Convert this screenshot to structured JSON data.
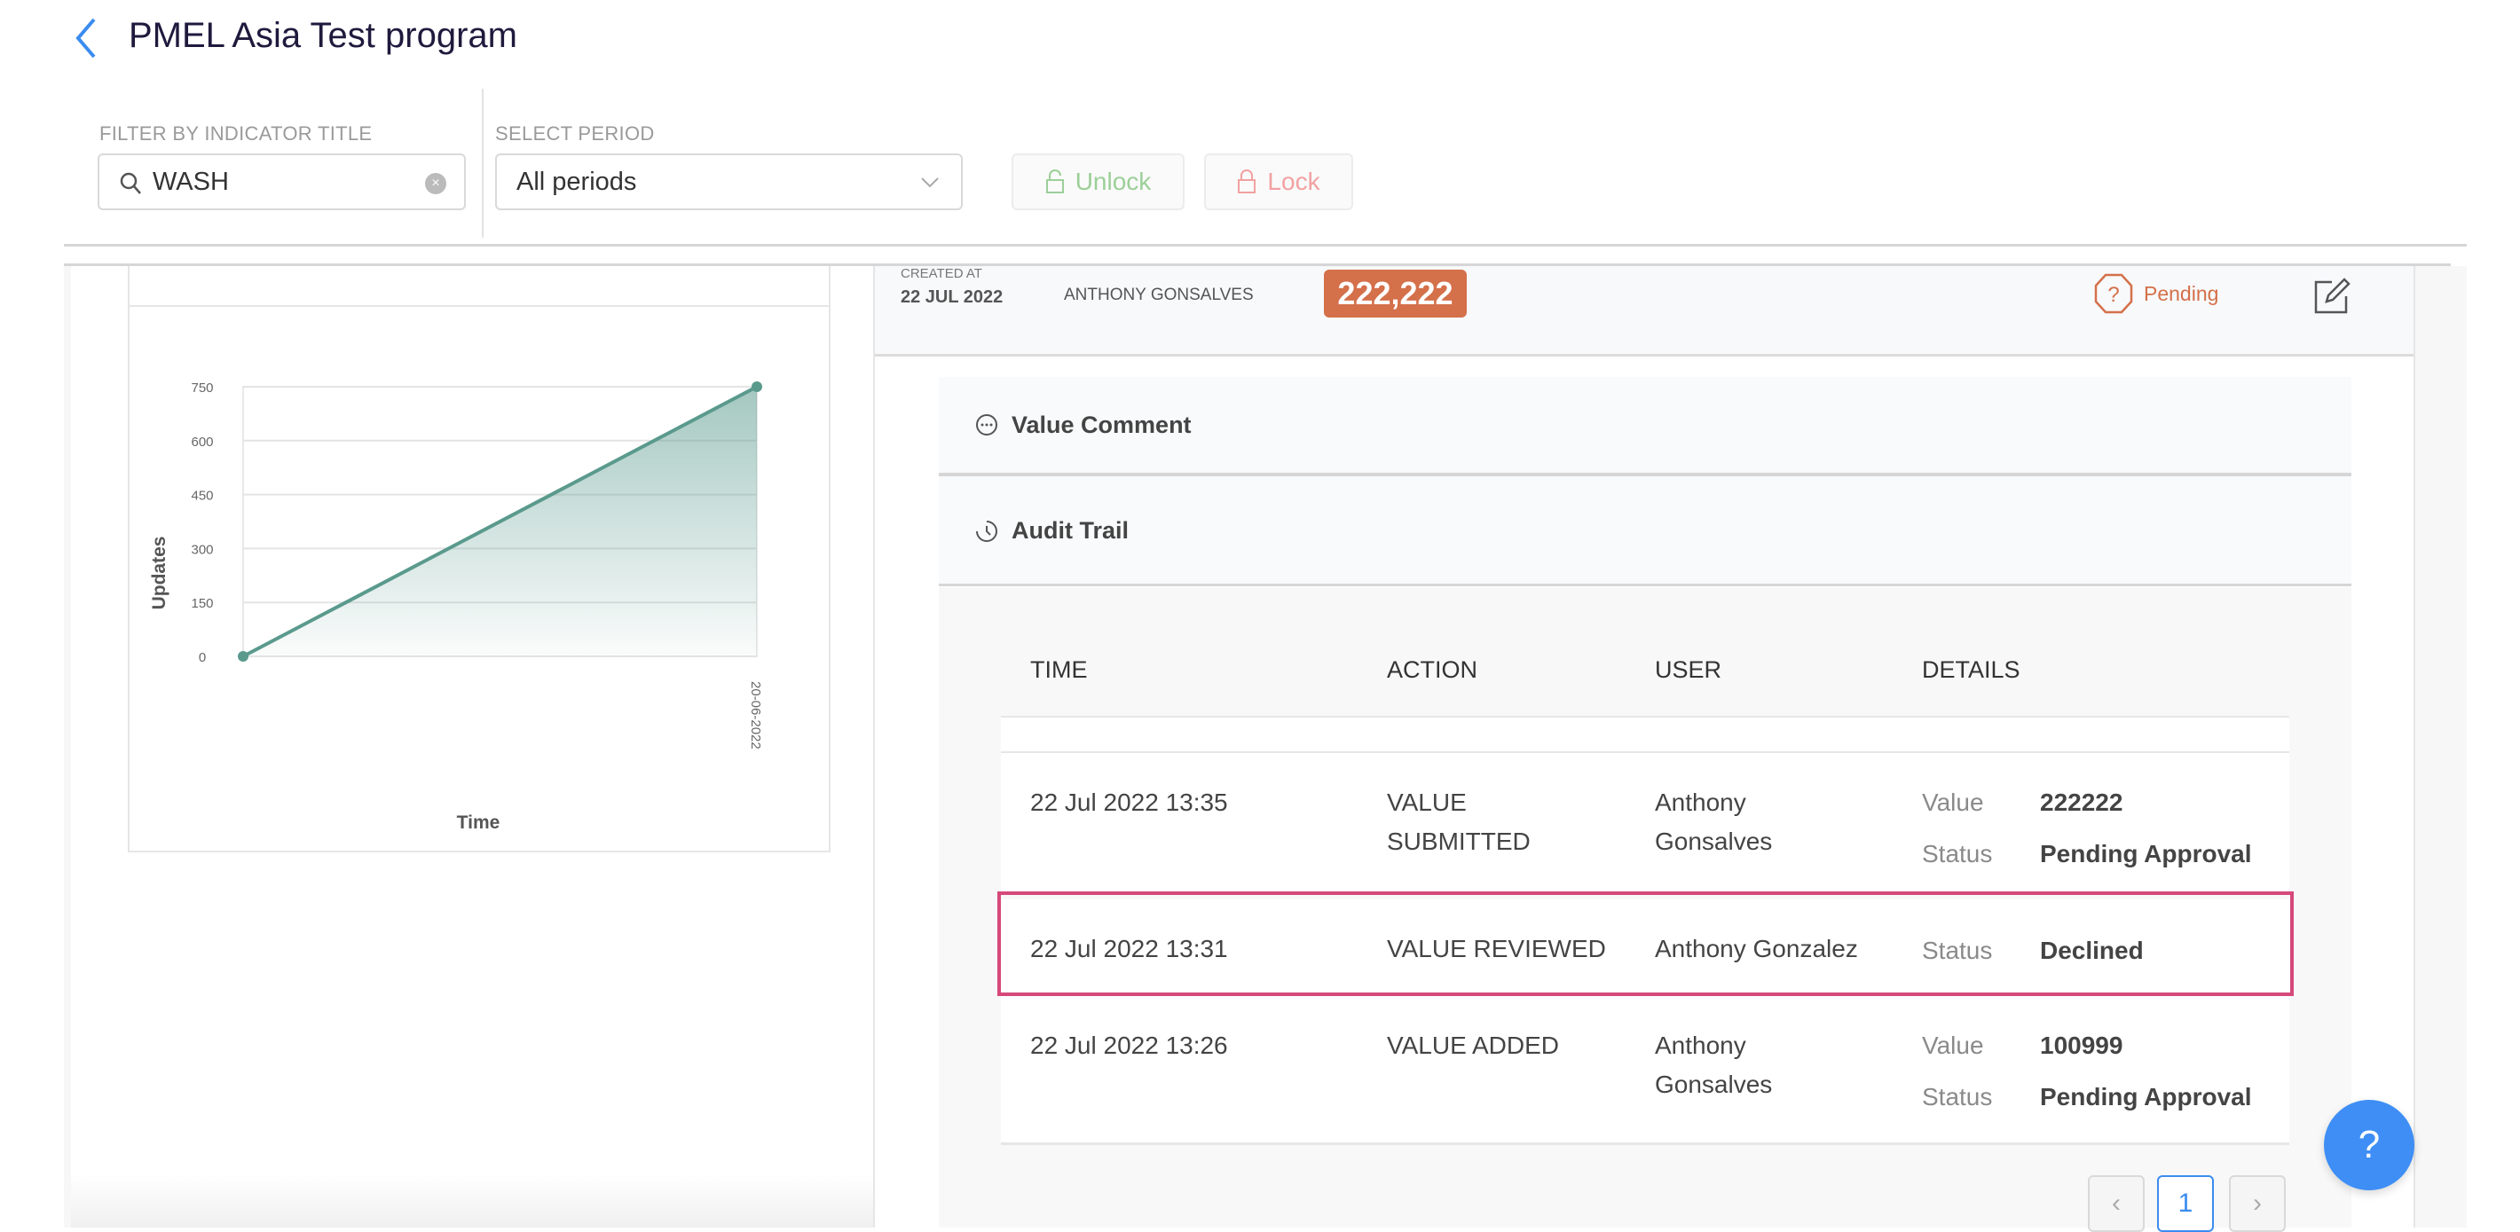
{
  "header": {
    "title": "PMEL Asia Test program"
  },
  "filters": {
    "indicator_label": "FILTER BY INDICATOR TITLE",
    "indicator_value": "WASH",
    "period_label": "SELECT PERIOD",
    "period_value": "All periods",
    "unlock_label": "Unlock",
    "lock_label": "Lock"
  },
  "update": {
    "created_at_label": "CREATED AT",
    "created_at": "22 JUL 2022",
    "user": "ANTHONY GONSALVES",
    "value": "222,222",
    "status": "Pending",
    "status_color": "#d4704a"
  },
  "sections": {
    "comment": "Value Comment",
    "audit": "Audit Trail"
  },
  "audit": {
    "columns": [
      "TIME",
      "ACTION",
      "USER",
      "DETAILS"
    ],
    "rows": [
      {
        "time": "22 Jul 2022 13:35",
        "action": [
          "VALUE",
          "SUBMITTED"
        ],
        "user": [
          "Anthony",
          "Gonsalves"
        ],
        "details": [
          {
            "label": "Value",
            "value": "222222"
          },
          {
            "label": "Status",
            "value": "Pending Approval"
          }
        ]
      },
      {
        "time": "22 Jul 2022 13:31",
        "action": [
          "VALUE REVIEWED"
        ],
        "user": [
          "Anthony Gonzalez"
        ],
        "details": [
          {
            "label": "Status",
            "value": "Declined"
          }
        ],
        "highlighted": true
      },
      {
        "time": "22 Jul 2022 13:26",
        "action": [
          "VALUE ADDED"
        ],
        "user": [
          "Anthony",
          "Gonsalves"
        ],
        "details": [
          {
            "label": "Value",
            "value": "100999"
          },
          {
            "label": "Status",
            "value": "Pending Approval"
          }
        ]
      }
    ],
    "highlight_color": "#d6497a"
  },
  "pagination": {
    "current": "1"
  },
  "help": {
    "label": "?"
  },
  "chart_data": {
    "type": "area",
    "x": [
      "",
      "20-06-2022"
    ],
    "values": [
      0,
      750
    ],
    "xlabel": "Time",
    "ylabel": "Updates",
    "yticks": [
      "0",
      "150",
      "300",
      "450",
      "600",
      "750"
    ],
    "ylim": [
      0,
      750
    ],
    "grid": true,
    "color": "#5a9a8d"
  }
}
